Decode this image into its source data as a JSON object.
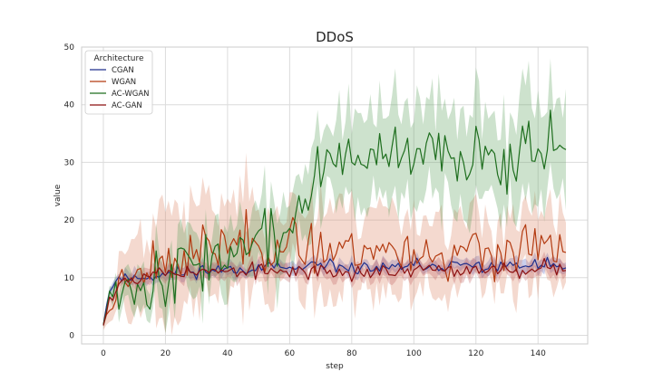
{
  "chart_data": {
    "type": "line",
    "title": "DDoS",
    "xlabel": "step",
    "ylabel": "value",
    "xlim": [
      -7,
      156
    ],
    "ylim": [
      -1.5,
      50
    ],
    "xticks": [
      0,
      20,
      40,
      60,
      80,
      100,
      120,
      140
    ],
    "yticks": [
      0,
      10,
      20,
      30,
      40,
      50
    ],
    "grid": true,
    "legend": {
      "title": "Architecture",
      "placement": "top-left"
    },
    "series": [
      {
        "name": "CGAN",
        "color": "#1f2f8c",
        "band_color": "#5060c0",
        "anchors": [
          [
            0,
            2
          ],
          [
            2,
            8
          ],
          [
            5,
            10
          ],
          [
            10,
            10
          ],
          [
            20,
            10.5
          ],
          [
            30,
            11.2
          ],
          [
            40,
            11.5
          ],
          [
            50,
            11.8
          ],
          [
            60,
            11.5
          ],
          [
            70,
            11.8
          ],
          [
            80,
            11.8
          ],
          [
            90,
            11.5
          ],
          [
            100,
            12
          ],
          [
            110,
            12
          ],
          [
            120,
            12
          ],
          [
            130,
            12
          ],
          [
            140,
            12
          ],
          [
            149,
            12
          ]
        ],
        "noise": 0.8,
        "band": [
          [
            0,
            0.5
          ],
          [
            10,
            1.2
          ],
          [
            40,
            1.0
          ],
          [
            149,
            1.0
          ]
        ],
        "seed": 11
      },
      {
        "name": "WGAN",
        "color": "#b33a10",
        "band_color": "#d98060",
        "anchors": [
          [
            0,
            2
          ],
          [
            2,
            5
          ],
          [
            5,
            9
          ],
          [
            10,
            12
          ],
          [
            20,
            13
          ],
          [
            30,
            14
          ],
          [
            40,
            16
          ],
          [
            50,
            16.5
          ],
          [
            60,
            15
          ],
          [
            70,
            15.5
          ],
          [
            80,
            15
          ],
          [
            90,
            15
          ],
          [
            100,
            14.5
          ],
          [
            110,
            14
          ],
          [
            120,
            14
          ],
          [
            130,
            14.5
          ],
          [
            140,
            15
          ],
          [
            149,
            14
          ]
        ],
        "noise": 3.2,
        "band": [
          [
            0,
            1
          ],
          [
            10,
            6
          ],
          [
            20,
            8
          ],
          [
            40,
            8
          ],
          [
            60,
            7
          ],
          [
            90,
            7
          ],
          [
            110,
            6
          ],
          [
            149,
            6
          ]
        ],
        "seed": 23
      },
      {
        "name": "AC-WGAN",
        "color": "#1e6e1e",
        "band_color": "#5aa05a",
        "anchors": [
          [
            0,
            2
          ],
          [
            2,
            7
          ],
          [
            5,
            9
          ],
          [
            10,
            10
          ],
          [
            15,
            8.5
          ],
          [
            20,
            10
          ],
          [
            25,
            12
          ],
          [
            30,
            13
          ],
          [
            35,
            14
          ],
          [
            40,
            14
          ],
          [
            45,
            15
          ],
          [
            50,
            17
          ],
          [
            55,
            16
          ],
          [
            60,
            18
          ],
          [
            65,
            24
          ],
          [
            70,
            28
          ],
          [
            75,
            30
          ],
          [
            80,
            32
          ],
          [
            90,
            30
          ],
          [
            100,
            31
          ],
          [
            110,
            31
          ],
          [
            120,
            32
          ],
          [
            130,
            31
          ],
          [
            140,
            34
          ],
          [
            149,
            34
          ]
        ],
        "noise": 3.8,
        "band": [
          [
            0,
            1
          ],
          [
            20,
            4
          ],
          [
            40,
            5
          ],
          [
            60,
            6
          ],
          [
            80,
            7
          ],
          [
            100,
            8
          ],
          [
            120,
            8
          ],
          [
            149,
            8
          ]
        ],
        "seed": 37
      },
      {
        "name": "AC-GAN",
        "color": "#8c1010",
        "band_color": "#c06060",
        "anchors": [
          [
            0,
            2
          ],
          [
            2,
            6
          ],
          [
            5,
            9
          ],
          [
            10,
            10.5
          ],
          [
            20,
            11
          ],
          [
            30,
            11
          ],
          [
            40,
            11
          ],
          [
            50,
            11
          ],
          [
            60,
            11
          ],
          [
            70,
            11
          ],
          [
            80,
            11
          ],
          [
            90,
            11
          ],
          [
            100,
            11.2
          ],
          [
            110,
            11.2
          ],
          [
            120,
            11.5
          ],
          [
            130,
            11.5
          ],
          [
            140,
            11.5
          ],
          [
            149,
            12
          ]
        ],
        "noise": 1.0,
        "band": [
          [
            0,
            0.5
          ],
          [
            10,
            1.2
          ],
          [
            149,
            1.3
          ]
        ],
        "seed": 53
      }
    ],
    "num_steps": 150
  }
}
